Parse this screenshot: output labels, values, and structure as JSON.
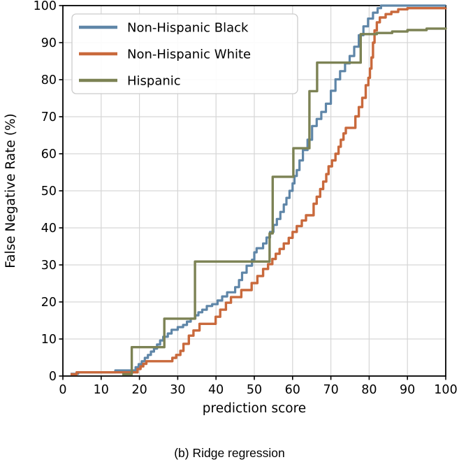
{
  "figure": {
    "caption": "(b) Ridge regression"
  },
  "chart_data": {
    "type": "line",
    "subtype": "step-post",
    "title": "",
    "xlabel": "prediction score",
    "ylabel": "False Negative Rate (%)",
    "xlim": [
      0,
      100
    ],
    "ylim": [
      0,
      100
    ],
    "xticks": [
      0,
      10,
      20,
      30,
      40,
      50,
      60,
      70,
      80,
      90,
      100
    ],
    "yticks": [
      0,
      10,
      20,
      30,
      40,
      50,
      60,
      70,
      80,
      90,
      100
    ],
    "grid": true,
    "legend_position": "upper left",
    "colors": {
      "grid": "#d6d6d6",
      "axis": "#000000",
      "legend_border": "#cccccc"
    },
    "series": [
      {
        "name": "Non-Hispanic Black",
        "color": "#5f86a8",
        "points": [
          [
            2,
            0.6
          ],
          [
            4,
            1
          ],
          [
            13.7,
            1.5
          ],
          [
            19,
            2.4
          ],
          [
            19.8,
            3.2
          ],
          [
            20.6,
            4
          ],
          [
            21.4,
            4.9
          ],
          [
            22.2,
            5.7
          ],
          [
            23,
            6.6
          ],
          [
            23.8,
            7.4
          ],
          [
            24.6,
            8.5
          ],
          [
            25.4,
            9.6
          ],
          [
            26.2,
            10.6
          ],
          [
            27.4,
            11.5
          ],
          [
            28.4,
            12.5
          ],
          [
            30,
            13.2
          ],
          [
            31.4,
            13.8
          ],
          [
            32.4,
            14.7
          ],
          [
            33.4,
            15.5
          ],
          [
            34.6,
            16.4
          ],
          [
            35.4,
            17.2
          ],
          [
            36.4,
            17.9
          ],
          [
            37.6,
            18.9
          ],
          [
            39,
            19.4
          ],
          [
            40.4,
            20.4
          ],
          [
            41.6,
            21.5
          ],
          [
            42.9,
            22.6
          ],
          [
            45,
            24
          ],
          [
            46,
            25.9
          ],
          [
            46.8,
            27.9
          ],
          [
            48,
            29.8
          ],
          [
            49.4,
            31.4
          ],
          [
            50,
            33.4
          ],
          [
            50.6,
            34.5
          ],
          [
            52.3,
            35.8
          ],
          [
            53.2,
            37.4
          ],
          [
            54.1,
            38.9
          ],
          [
            55,
            40.8
          ],
          [
            55.9,
            42.4
          ],
          [
            56.8,
            44.3
          ],
          [
            57.7,
            46.3
          ],
          [
            58.4,
            48.1
          ],
          [
            59.2,
            50
          ],
          [
            60,
            52
          ],
          [
            60.5,
            54
          ],
          [
            61.1,
            55.6
          ],
          [
            61.8,
            58.2
          ],
          [
            62.7,
            61
          ],
          [
            63.9,
            63.8
          ],
          [
            65.1,
            67.5
          ],
          [
            66.3,
            69.4
          ],
          [
            67.5,
            71.3
          ],
          [
            68.7,
            73.5
          ],
          [
            70,
            77
          ],
          [
            71.2,
            80.1
          ],
          [
            72.4,
            82.3
          ],
          [
            73.7,
            84.4
          ],
          [
            74.9,
            86.4
          ],
          [
            76.1,
            88.9
          ],
          [
            77.3,
            92
          ],
          [
            78.5,
            94.4
          ],
          [
            79.7,
            96.5
          ],
          [
            81,
            98.1
          ],
          [
            82.2,
            99.3
          ],
          [
            83.1,
            100
          ],
          [
            100,
            100
          ]
        ]
      },
      {
        "name": "Non-Hispanic White",
        "color": "#c9693c",
        "points": [
          [
            2,
            0.5
          ],
          [
            3.6,
            1
          ],
          [
            19.5,
            1.9
          ],
          [
            20.3,
            2.6
          ],
          [
            21,
            3.3
          ],
          [
            21.8,
            4
          ],
          [
            28.6,
            4.9
          ],
          [
            29.6,
            5.7
          ],
          [
            30.7,
            6.8
          ],
          [
            31.5,
            8.7
          ],
          [
            32.9,
            10.9
          ],
          [
            34.1,
            12.3
          ],
          [
            35.7,
            14.1
          ],
          [
            39.9,
            16
          ],
          [
            41.1,
            17.9
          ],
          [
            42.6,
            19.8
          ],
          [
            43.9,
            21.3
          ],
          [
            46.6,
            23.2
          ],
          [
            49.3,
            25.1
          ],
          [
            50.8,
            27
          ],
          [
            52.3,
            28.9
          ],
          [
            53.6,
            30.2
          ],
          [
            54.7,
            31.6
          ],
          [
            55.6,
            33
          ],
          [
            56.6,
            34.3
          ],
          [
            57.7,
            35.8
          ],
          [
            59,
            37.3
          ],
          [
            60,
            38.9
          ],
          [
            61.1,
            40.5
          ],
          [
            62.4,
            42
          ],
          [
            63.5,
            43.4
          ],
          [
            65.5,
            46.5
          ],
          [
            66.3,
            48.4
          ],
          [
            67.2,
            50.5
          ],
          [
            68,
            52.5
          ],
          [
            68.8,
            54.5
          ],
          [
            69.4,
            56.6
          ],
          [
            70.3,
            58.2
          ],
          [
            71.2,
            60
          ],
          [
            72,
            61.9
          ],
          [
            72.6,
            63.8
          ],
          [
            73.3,
            65.5
          ],
          [
            73.9,
            67
          ],
          [
            76.4,
            70.1
          ],
          [
            77.3,
            72.6
          ],
          [
            78.2,
            75.1
          ],
          [
            79.1,
            78.5
          ],
          [
            79.8,
            80.5
          ],
          [
            80.2,
            83
          ],
          [
            80.6,
            86
          ],
          [
            81,
            90
          ],
          [
            81.4,
            93.3
          ],
          [
            82,
            95.5
          ],
          [
            82.8,
            96.8
          ],
          [
            84.3,
            97.7
          ],
          [
            85.8,
            98.3
          ],
          [
            87.6,
            99
          ],
          [
            90,
            99.3
          ],
          [
            100,
            99.4
          ]
        ]
      },
      {
        "name": "Hispanic",
        "color": "#7c8254",
        "points": [
          [
            15.5,
            0.5
          ],
          [
            18,
            7.8
          ],
          [
            26.5,
            15.5
          ],
          [
            34.5,
            30.9
          ],
          [
            54,
            38.5
          ],
          [
            54.8,
            53.8
          ],
          [
            60.2,
            61.5
          ],
          [
            64.4,
            76.9
          ],
          [
            66.4,
            84.6
          ],
          [
            77.8,
            92.3
          ],
          [
            82,
            92.6
          ],
          [
            86,
            93
          ],
          [
            90,
            93.4
          ],
          [
            95,
            93.8
          ],
          [
            100,
            94.1
          ]
        ]
      }
    ]
  }
}
